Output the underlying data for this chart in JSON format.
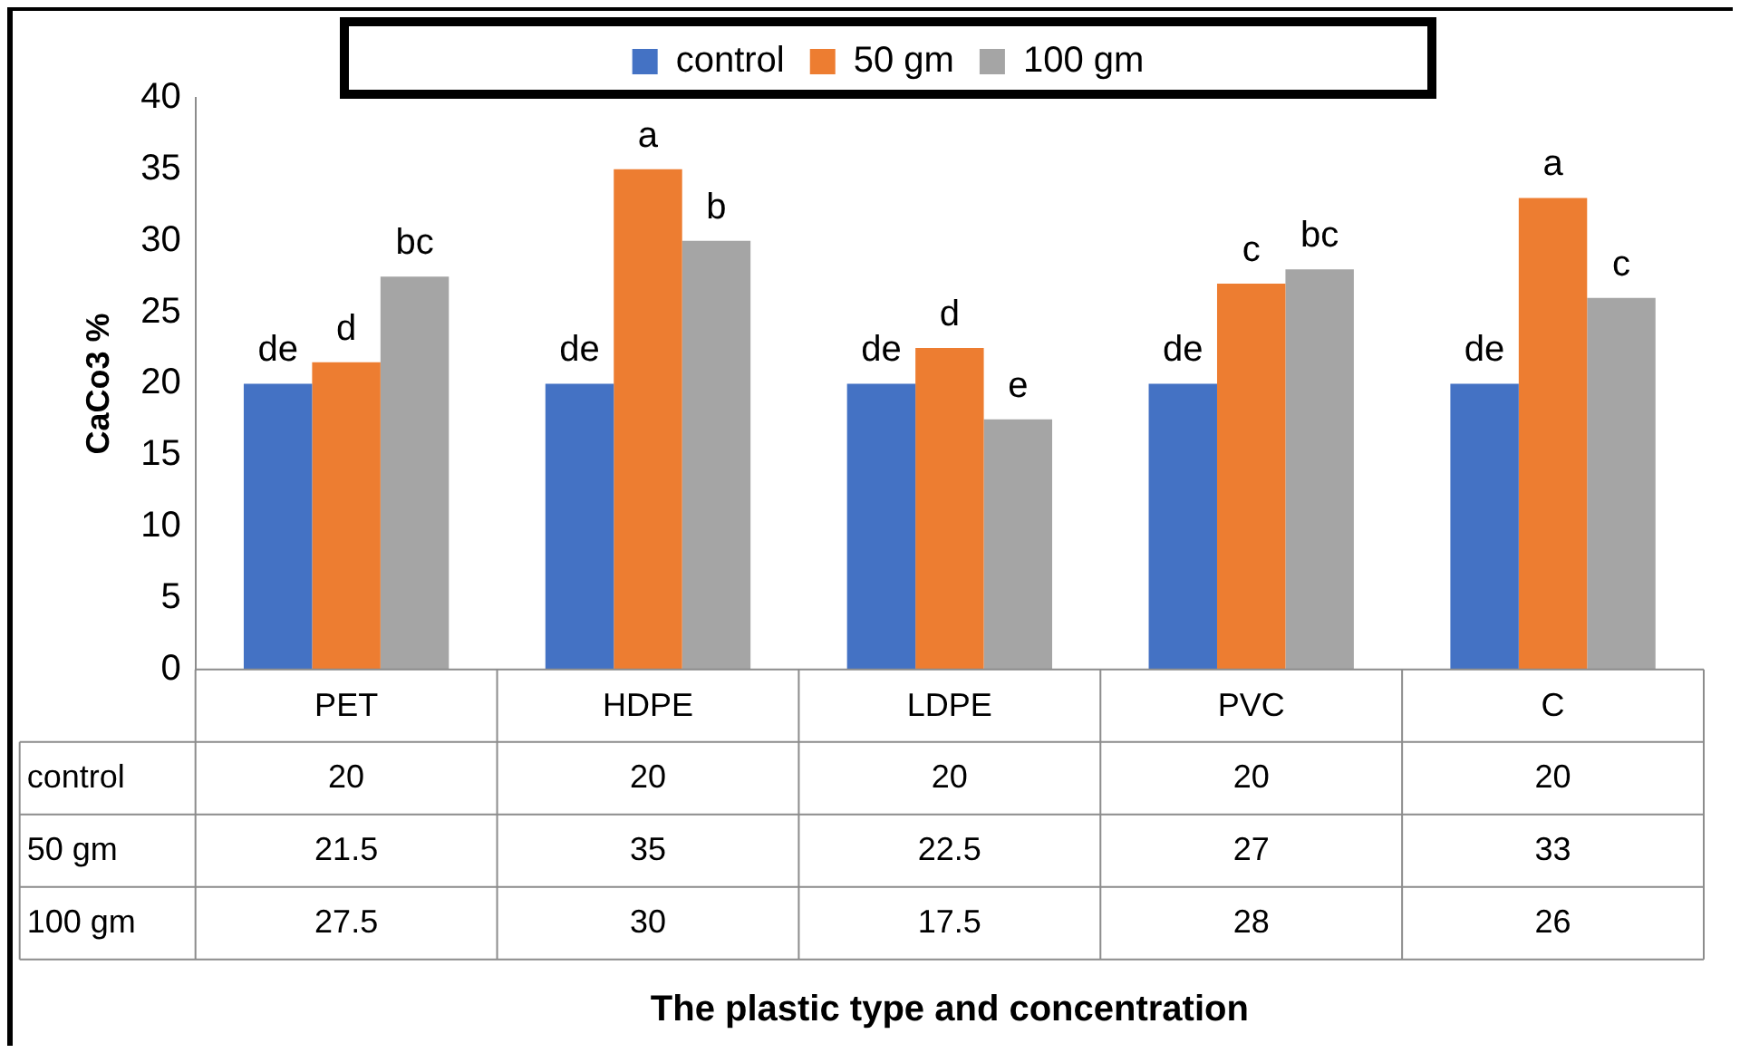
{
  "chart_data": {
    "type": "bar",
    "ylabel": "CaCo3 %",
    "categories": [
      "PET",
      "HDPE",
      "LDPE",
      "PVC",
      "C"
    ],
    "series": [
      {
        "name": "control",
        "color": "#4472c4",
        "values": [
          20,
          20,
          20,
          20,
          20
        ]
      },
      {
        "name": "50 gm",
        "color": "#ed7d31",
        "values": [
          21.5,
          35,
          22.5,
          27,
          33
        ]
      },
      {
        "name": "100 gm",
        "color": "#a5a5a5",
        "values": [
          27.5,
          30,
          17.5,
          28,
          26
        ]
      }
    ],
    "ylim": [
      0,
      40
    ],
    "yticks": [
      0,
      5,
      10,
      15,
      20,
      25,
      30,
      35,
      40
    ],
    "grid": false,
    "legend": "top",
    "data_labels": true,
    "annotations": [
      "de",
      "d",
      "bc",
      "de",
      "a",
      "b",
      "de",
      "d",
      "e",
      "de",
      "c",
      "bc",
      "de",
      "a",
      "c",
      "The plastic type and concentration"
    ]
  }
}
